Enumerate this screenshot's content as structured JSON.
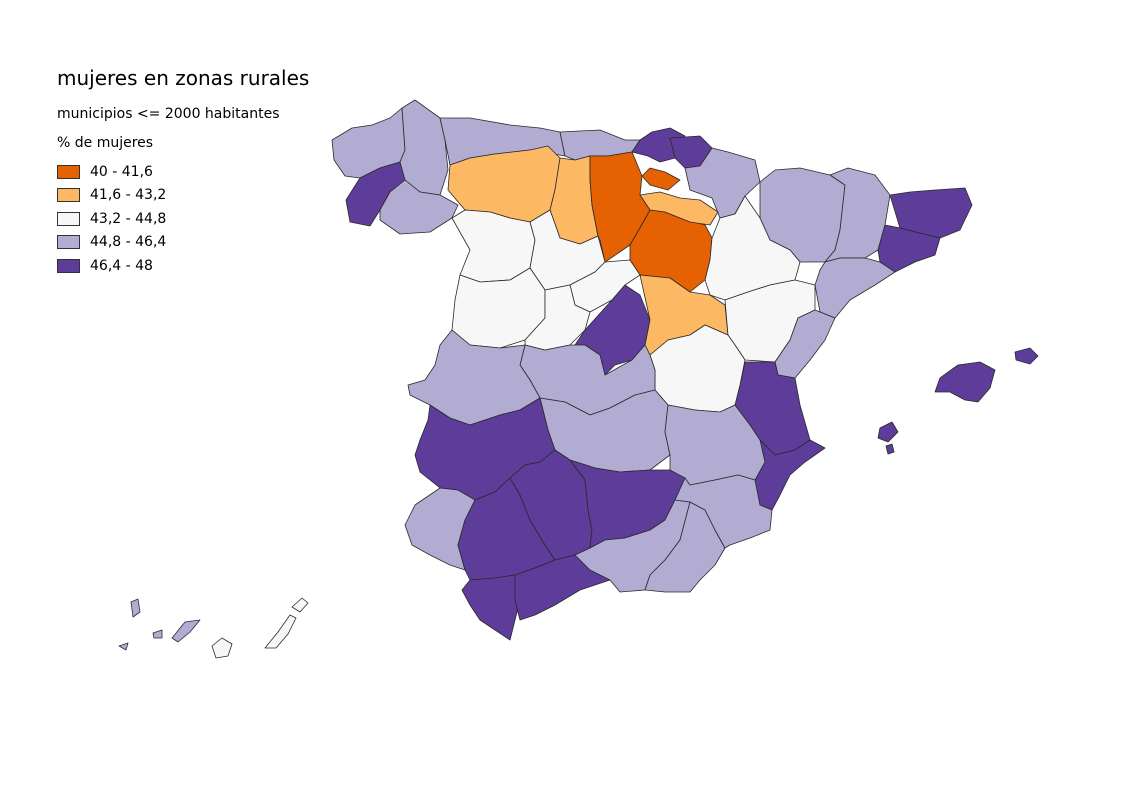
{
  "map": {
    "title": "mujeres en zonas rurales",
    "subtitle": "municipios <= 2000 habitantes",
    "legend_title": "% de mujeres",
    "legend": [
      {
        "label": "40 - 41,6",
        "color": "#e66101"
      },
      {
        "label": "41,6 - 43,2",
        "color": "#fdb863"
      },
      {
        "label": "43,2 - 44,8",
        "color": "#f7f7f7"
      },
      {
        "label": "44,8 - 46,4",
        "color": "#b2abd2"
      },
      {
        "label": "46,4 - 48",
        "color": "#5e3c99"
      }
    ]
  }
}
